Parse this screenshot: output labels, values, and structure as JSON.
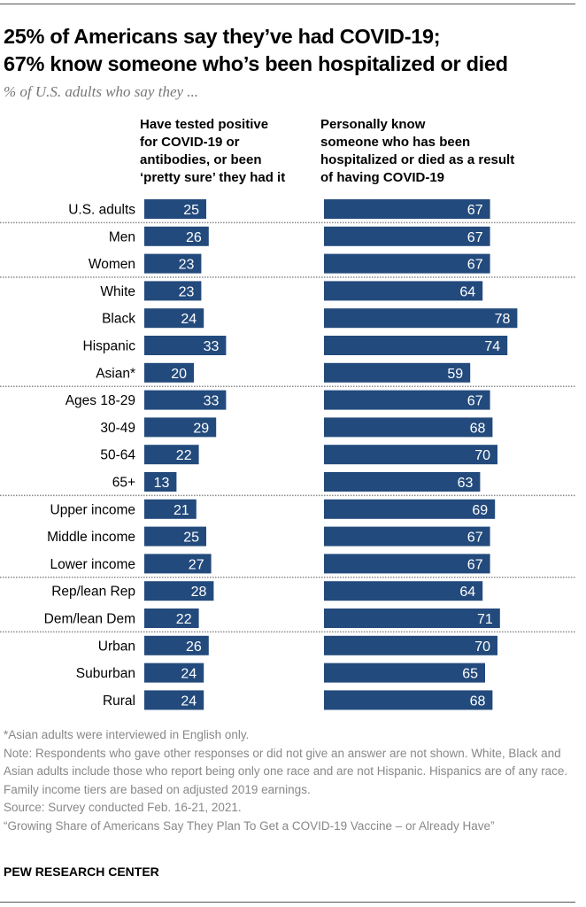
{
  "title_lines": [
    "25% of Americans say they’ve had COVID-19;",
    "67% know someone who’s been hospitalized or died"
  ],
  "subtitle": "% of U.S. adults who say they ...",
  "chart_data": {
    "type": "bar",
    "orientation": "horizontal",
    "categories": [
      "U.S. adults",
      "Men",
      "Women",
      "White",
      "Black",
      "Hispanic",
      "Asian*",
      "Ages 18-29",
      "30-49",
      "50-64",
      "65+",
      "Upper income",
      "Middle income",
      "Lower income",
      "Rep/lean Rep",
      "Dem/lean Dem",
      "Urban",
      "Suburban",
      "Rural"
    ],
    "group_separators_after": [
      "U.S. adults",
      "Women",
      "Asian*",
      "65+",
      "Lower income",
      "Dem/lean Dem"
    ],
    "series": [
      {
        "name": "Have tested positive for COVID-19 or antibodies, or been ‘pretty sure’ they had it",
        "name_lines": [
          "Have tested positive",
          "for COVID-19 or",
          "antibodies, or been",
          "‘pretty sure’ they had it"
        ],
        "values": [
          25,
          26,
          23,
          23,
          24,
          33,
          20,
          33,
          29,
          22,
          13,
          21,
          25,
          27,
          28,
          22,
          26,
          24,
          24
        ]
      },
      {
        "name": "Personally know someone who has been hospitalized or died as a result of having COVID-19",
        "name_lines": [
          "Personally know",
          "someone who has been",
          "hospitalized or died as a result",
          "of having COVID-19"
        ],
        "values": [
          67,
          67,
          67,
          64,
          78,
          74,
          59,
          67,
          68,
          70,
          63,
          69,
          67,
          67,
          64,
          71,
          70,
          65,
          68
        ]
      }
    ],
    "bar_color": "#234a7c",
    "label_color": "#ffffff",
    "xlim": [
      0,
      100
    ],
    "grid": false
  },
  "notes": [
    "*Asian adults were interviewed in English only.",
    "Note: Respondents who gave other responses or did not give an answer are not shown. White, Black and Asian adults include those who report being only one race and are not Hispanic. Hispanics are of any race. Family income tiers are based on adjusted 2019 earnings.",
    "Source: Survey conducted Feb. 16-21, 2021.",
    "“Growing Share of Americans Say They Plan To Get a COVID-19 Vaccine – or Already Have”"
  ],
  "brand": "PEW RESEARCH CENTER"
}
